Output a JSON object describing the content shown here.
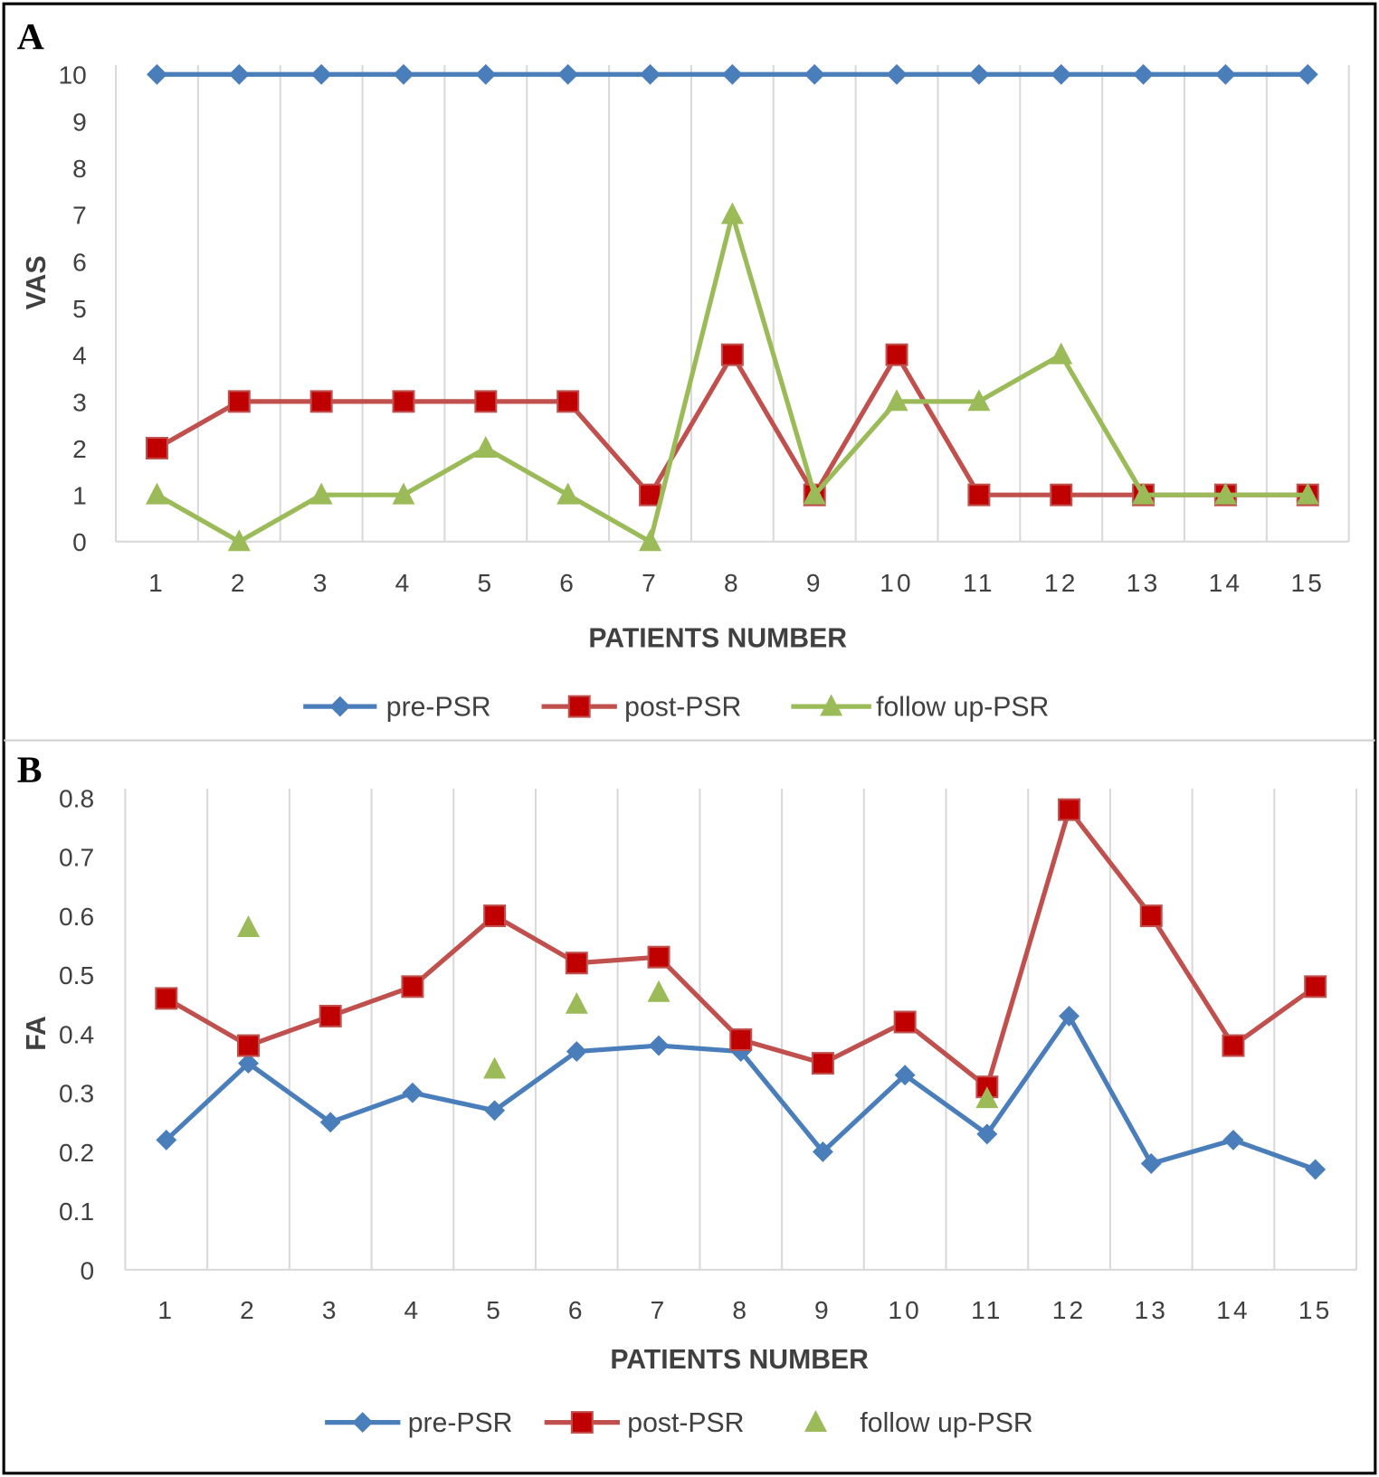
{
  "colors": {
    "pre": "#4a7ebb",
    "post_line": "#c0504d",
    "post_marker": "#c00000",
    "follow": "#9bbb59",
    "grid": "#d9d9d9"
  },
  "chart_data": [
    {
      "panel": "A",
      "type": "line",
      "title": "",
      "xlabel": "PATIENTS NUMBER",
      "ylabel": "VAS",
      "categories": [
        "1",
        "2",
        "3",
        "4",
        "5",
        "6",
        "7",
        "8",
        "9",
        "10",
        "11",
        "12",
        "13",
        "14",
        "15"
      ],
      "yticks": [
        "0",
        "1",
        "2",
        "3",
        "4",
        "5",
        "6",
        "7",
        "8",
        "9",
        "10"
      ],
      "ylim": [
        0,
        10
      ],
      "grid": "vertical",
      "legend_position": "bottom",
      "series": [
        {
          "name": "pre-PSR",
          "marker": "diamond",
          "line": true,
          "values": [
            10,
            10,
            10,
            10,
            10,
            10,
            10,
            10,
            10,
            10,
            10,
            10,
            10,
            10,
            10
          ]
        },
        {
          "name": "post-PSR",
          "marker": "square",
          "line": true,
          "values": [
            2,
            3,
            3,
            3,
            3,
            3,
            1,
            4,
            1,
            4,
            1,
            1,
            1,
            1,
            1
          ]
        },
        {
          "name": "follow up-PSR",
          "marker": "triangle",
          "line": true,
          "values": [
            1,
            0,
            1,
            1,
            2,
            1,
            0,
            7,
            1,
            3,
            3,
            4,
            1,
            1,
            1
          ]
        }
      ]
    },
    {
      "panel": "B",
      "type": "line",
      "title": "",
      "xlabel": "PATIENTS NUMBER",
      "ylabel": "FA",
      "categories": [
        "1",
        "2",
        "3",
        "4",
        "5",
        "6",
        "7",
        "8",
        "9",
        "10",
        "11",
        "12",
        "13",
        "14",
        "15"
      ],
      "yticks": [
        "0",
        "0.1",
        "0.2",
        "0.3",
        "0.4",
        "0.5",
        "0.6",
        "0.7",
        "0.8"
      ],
      "ylim": [
        0,
        0.8
      ],
      "grid": "vertical",
      "legend_position": "bottom",
      "series": [
        {
          "name": "pre-PSR",
          "marker": "diamond",
          "line": true,
          "values": [
            0.22,
            0.35,
            0.25,
            0.3,
            0.27,
            0.37,
            0.38,
            0.37,
            0.2,
            0.33,
            0.23,
            0.43,
            0.18,
            0.22,
            0.17
          ]
        },
        {
          "name": "post-PSR",
          "marker": "square",
          "line": true,
          "values": [
            0.46,
            0.38,
            0.43,
            0.48,
            0.6,
            0.52,
            0.53,
            0.39,
            0.35,
            0.42,
            0.31,
            0.78,
            0.6,
            0.38,
            0.48
          ]
        },
        {
          "name": "follow up-PSR",
          "marker": "triangle",
          "line": false,
          "values": [
            null,
            0.58,
            null,
            null,
            0.34,
            0.45,
            0.47,
            null,
            null,
            null,
            0.29,
            null,
            null,
            null,
            null
          ]
        }
      ]
    }
  ]
}
